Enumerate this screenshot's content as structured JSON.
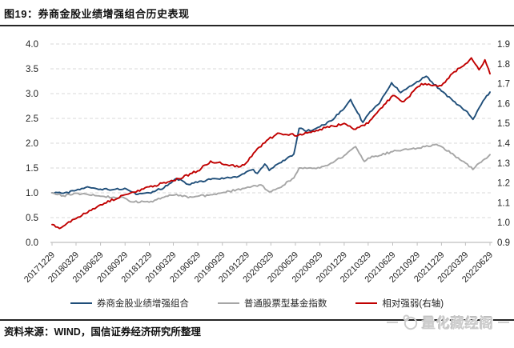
{
  "title": "图19：券商金股业绩增强组合历史表现",
  "footer": {
    "source": "资料来源：WIND，国信证券经济研究所整理",
    "watermark": "量化藏经阁"
  },
  "chart_data": {
    "type": "line",
    "title": "券商金股业绩增强组合历史表现",
    "grid": "horizontal-dashed",
    "legend_position": "bottom",
    "x_axis": {
      "tick_labels": [
        "20171229",
        "20180329",
        "20180629",
        "20180929",
        "20181229",
        "20190329",
        "20190629",
        "20190929",
        "20191229",
        "20200329",
        "20200629",
        "20200929",
        "20201229",
        "20210329",
        "20210629",
        "20210929",
        "20211229",
        "20220329",
        "20220629"
      ],
      "label_rotation_deg": -45
    },
    "y_axis_left": {
      "min": 0.0,
      "max": 4.0,
      "step": 0.5,
      "tick_labels": [
        "4.0",
        "3.5",
        "3.0",
        "2.5",
        "2.0",
        "1.5",
        "1.0",
        "0.5",
        "0.0"
      ]
    },
    "y_axis_right": {
      "min": 0.9,
      "max": 1.9,
      "step": 0.1,
      "tick_labels": [
        "1.9",
        "1.8",
        "1.7",
        "1.6",
        "1.5",
        "1.4",
        "1.3",
        "1.2",
        "1.1",
        "1.0",
        "0.9"
      ]
    },
    "series": [
      {
        "name": "券商金股业绩增强组合",
        "axis": "left",
        "color": "#1f4e79",
        "points": [
          [
            "20171229",
            1.0
          ],
          [
            "20180209",
            0.99
          ],
          [
            "20180329",
            1.05
          ],
          [
            "20180518",
            1.11
          ],
          [
            "20180706",
            1.06
          ],
          [
            "20180928",
            1.09
          ],
          [
            "20181019",
            1.03
          ],
          [
            "20181116",
            0.97
          ],
          [
            "20181228",
            1.0
          ],
          [
            "20190222",
            1.1
          ],
          [
            "20190410",
            1.29
          ],
          [
            "20190524",
            1.17
          ],
          [
            "20190628",
            1.21
          ],
          [
            "20190816",
            1.27
          ],
          [
            "20190927",
            1.3
          ],
          [
            "20191129",
            1.33
          ],
          [
            "20191227",
            1.42
          ],
          [
            "20200123",
            1.47
          ],
          [
            "20200207",
            1.39
          ],
          [
            "20200306",
            1.58
          ],
          [
            "20200323",
            1.45
          ],
          [
            "20200430",
            1.6
          ],
          [
            "20200623",
            1.78
          ],
          [
            "20200713",
            2.3
          ],
          [
            "20200810",
            2.24
          ],
          [
            "20200929",
            2.33
          ],
          [
            "20201110",
            2.45
          ],
          [
            "20201229",
            2.7
          ],
          [
            "20210122",
            2.88
          ],
          [
            "20210309",
            2.42
          ],
          [
            "20210329",
            2.58
          ],
          [
            "20210510",
            2.8
          ],
          [
            "20210625",
            3.22
          ],
          [
            "20210729",
            3.02
          ],
          [
            "20210914",
            3.18
          ],
          [
            "20211102",
            3.35
          ],
          [
            "20211229",
            3.05
          ],
          [
            "20220211",
            2.85
          ],
          [
            "20220329",
            2.66
          ],
          [
            "20220426",
            2.48
          ],
          [
            "20220520",
            2.72
          ],
          [
            "20220610",
            2.9
          ],
          [
            "20220629",
            3.03
          ]
        ]
      },
      {
        "name": "普通股票型基金指数",
        "axis": "left",
        "color": "#a6a6a6",
        "points": [
          [
            "20171229",
            1.0
          ],
          [
            "20180209",
            0.94
          ],
          [
            "20180329",
            0.99
          ],
          [
            "20180629",
            0.93
          ],
          [
            "20180928",
            0.89
          ],
          [
            "20181019",
            0.82
          ],
          [
            "20181228",
            0.81
          ],
          [
            "20190308",
            0.93
          ],
          [
            "20190410",
            0.97
          ],
          [
            "20190524",
            0.9
          ],
          [
            "20190628",
            0.93
          ],
          [
            "20190809",
            0.95
          ],
          [
            "20190927",
            1.0
          ],
          [
            "20191227",
            1.1
          ],
          [
            "20200221",
            1.16
          ],
          [
            "20200323",
            1.02
          ],
          [
            "20200430",
            1.1
          ],
          [
            "20200623",
            1.3
          ],
          [
            "20200713",
            1.5
          ],
          [
            "20200929",
            1.5
          ],
          [
            "20201110",
            1.6
          ],
          [
            "20201229",
            1.75
          ],
          [
            "20210210",
            1.93
          ],
          [
            "20210315",
            1.63
          ],
          [
            "20210329",
            1.7
          ],
          [
            "20210629",
            1.83
          ],
          [
            "20210929",
            1.9
          ],
          [
            "20211203",
            1.97
          ],
          [
            "20211229",
            1.93
          ],
          [
            "20220329",
            1.6
          ],
          [
            "20220426",
            1.47
          ],
          [
            "20220520",
            1.6
          ],
          [
            "20220629",
            1.77
          ]
        ]
      },
      {
        "name": "相对强弱(右轴)",
        "axis": "right",
        "color": "#c00000",
        "points": [
          [
            "20171229",
            0.99
          ],
          [
            "20180126",
            0.97
          ],
          [
            "20180329",
            1.02
          ],
          [
            "20180629",
            1.09
          ],
          [
            "20180928",
            1.14
          ],
          [
            "20181228",
            1.18
          ],
          [
            "20190329",
            1.21
          ],
          [
            "20190628",
            1.26
          ],
          [
            "20190816",
            1.31
          ],
          [
            "20191129",
            1.28
          ],
          [
            "20191227",
            1.3
          ],
          [
            "20200214",
            1.38
          ],
          [
            "20200320",
            1.42
          ],
          [
            "20200430",
            1.45
          ],
          [
            "20200710",
            1.44
          ],
          [
            "20200929",
            1.47
          ],
          [
            "20201229",
            1.5
          ],
          [
            "20210210",
            1.47
          ],
          [
            "20210329",
            1.5
          ],
          [
            "20210521",
            1.58
          ],
          [
            "20210629",
            1.64
          ],
          [
            "20210810",
            1.61
          ],
          [
            "20211015",
            1.7
          ],
          [
            "20211229",
            1.69
          ],
          [
            "20220215",
            1.76
          ],
          [
            "20220329",
            1.8
          ],
          [
            "20220420",
            1.83
          ],
          [
            "20220519",
            1.77
          ],
          [
            "20220610",
            1.82
          ],
          [
            "20220629",
            1.75
          ]
        ]
      }
    ]
  }
}
